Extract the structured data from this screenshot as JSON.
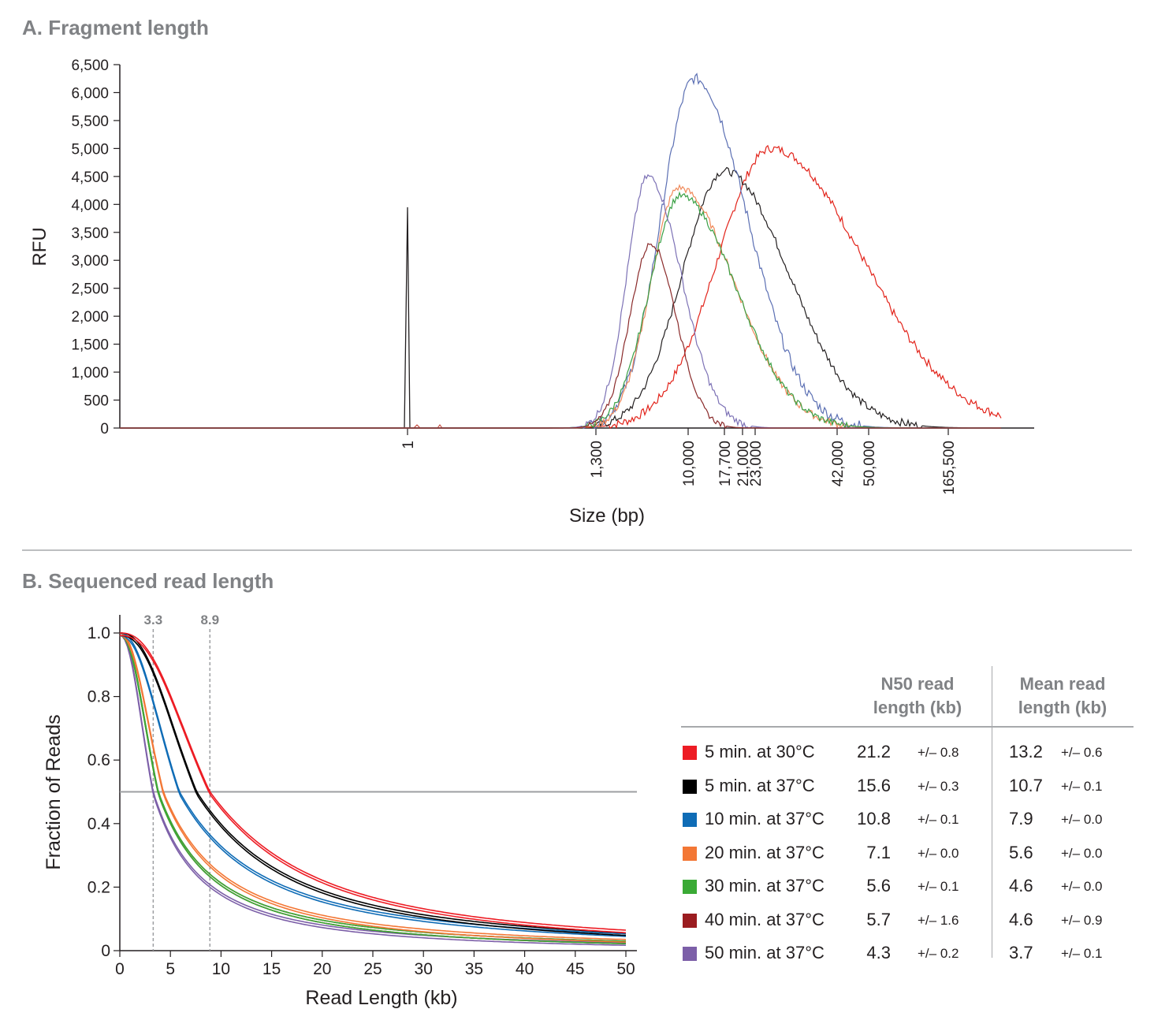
{
  "panels": {
    "a_title": "A. Fragment length",
    "b_title": "B. Sequenced read length"
  },
  "chart_data": [
    {
      "type": "line",
      "title": "A. Fragment length",
      "xlabel": "Size (bp)",
      "ylabel": "RFU",
      "ylim": [
        0,
        6500
      ],
      "yticks": [
        "0",
        "500",
        "1,000",
        "1,500",
        "2,000",
        "2,500",
        "3,000",
        "3,500",
        "4,000",
        "4,500",
        "5,000",
        "5,500",
        "6,000",
        "6,500"
      ],
      "xtick_labels": [
        "1",
        "1,300",
        "10,000",
        "17,700",
        "21,000",
        "23,000",
        "42,000",
        "50,000",
        "165,500"
      ],
      "marker_peak": {
        "x": "1",
        "y": 3950
      },
      "grid": false,
      "series": [
        {
          "color": "#e2231a",
          "peak_x": "23,000",
          "peak_y": 5000
        },
        {
          "color": "#231f20",
          "peak_x": "17,700",
          "peak_y": 4600
        },
        {
          "color": "#5b6fb3",
          "peak_x": "10,000",
          "peak_y": 6250
        },
        {
          "color": "#f08a5b",
          "peak_x": "10,000",
          "peak_y": 4300
        },
        {
          "color": "#3aa045",
          "peak_x": "10,000",
          "peak_y": 4150
        },
        {
          "color": "#7c71b5",
          "peak_x": "1,300",
          "peak_y": 4500
        },
        {
          "color": "#8a2a2a",
          "peak_x": "1,300",
          "peak_y": 3300
        }
      ]
    },
    {
      "type": "line",
      "title": "B. Sequenced read length",
      "xlabel": "Read Length (kb)",
      "ylabel": "Fraction of Reads",
      "xlim": [
        0,
        50
      ],
      "ylim": [
        0,
        1.0
      ],
      "xticks": [
        "0",
        "5",
        "10",
        "15",
        "20",
        "25",
        "30",
        "35",
        "40",
        "45",
        "50"
      ],
      "yticks": [
        "0",
        "0.2",
        "0.4",
        "0.6",
        "0.8",
        "1.0"
      ],
      "reference_lines": {
        "horizontal_y": 0.5,
        "vertical_x": [
          3.3,
          8.9
        ],
        "vertical_labels": [
          "3.3",
          "8.9"
        ]
      },
      "grid": false,
      "series": [
        {
          "name": "5 min. at 30°C",
          "color": "#ed1c24",
          "n50": "21.2",
          "n50_sd": "+/– 0.8",
          "mean": "13.2",
          "mean_sd": "+/– 0.6",
          "median_x": 8.9
        },
        {
          "name": "5 min. at 37°C",
          "color": "#000000",
          "n50": "15.6",
          "n50_sd": "+/– 0.3",
          "mean": "10.7",
          "mean_sd": "+/– 0.1",
          "median_x": 7.6
        },
        {
          "name": "10 min. at 37°C",
          "color": "#0f6cb6",
          "n50": "10.8",
          "n50_sd": "+/– 0.1",
          "mean": "7.9",
          "mean_sd": "+/– 0.0",
          "median_x": 5.9
        },
        {
          "name": "20 min. at 37°C",
          "color": "#f37735",
          "n50": "7.1",
          "n50_sd": "+/– 0.0",
          "mean": "5.6",
          "mean_sd": "+/– 0.0",
          "median_x": 4.3
        },
        {
          "name": "30 min. at 37°C",
          "color": "#3aaa35",
          "n50": "5.6",
          "n50_sd": "+/– 0.1",
          "mean": "4.6",
          "mean_sd": "+/– 0.0",
          "median_x": 3.8
        },
        {
          "name": "40 min. at 37°C",
          "color": "#9b1c20",
          "n50": "5.7",
          "n50_sd": "+/– 1.6",
          "mean": "4.6",
          "mean_sd": "+/– 0.9",
          "median_x": 3.8
        },
        {
          "name": "50 min. at 37°C",
          "color": "#7c5fa8",
          "n50": "4.3",
          "n50_sd": "+/– 0.2",
          "mean": "3.7",
          "mean_sd": "+/– 0.1",
          "median_x": 3.3
        }
      ]
    }
  ],
  "legend_table": {
    "n50_header_line1": "N50 read",
    "n50_header_line2": "length (kb)",
    "mean_header_line1": "Mean read",
    "mean_header_line2": "length (kb)"
  }
}
